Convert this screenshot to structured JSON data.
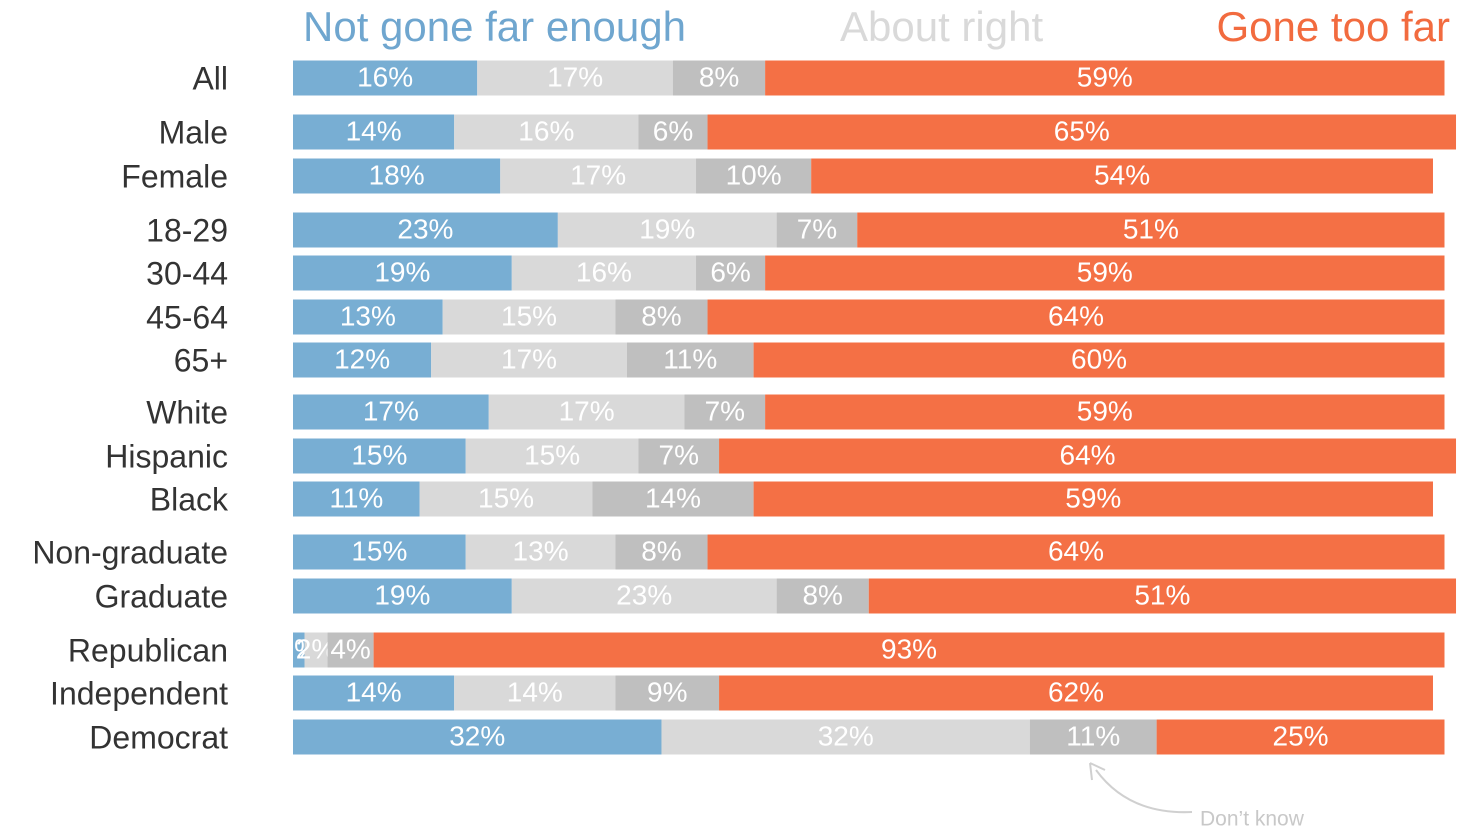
{
  "chart_data": {
    "type": "stacked_bar_horizontal",
    "categories": [
      "All",
      "Male",
      "Female",
      "18-29",
      "30-44",
      "45-64",
      "65+",
      "White",
      "Hispanic",
      "Black",
      "Non-graduate",
      "Graduate",
      "Republican",
      "Independent",
      "Democrat"
    ],
    "xlim": [
      0,
      100
    ],
    "series": [
      {
        "name": "Not gone far enough",
        "color": "#78aed3",
        "values": [
          16,
          14,
          18,
          23,
          19,
          13,
          12,
          17,
          15,
          11,
          15,
          19,
          1,
          14,
          32
        ],
        "value_labels": [
          "16%",
          "14%",
          "18%",
          "23%",
          "19%",
          "13%",
          "12%",
          "17%",
          "15%",
          "11%",
          "15%",
          "19%",
          "1%",
          "14%",
          "32%"
        ]
      },
      {
        "name": "About right",
        "color": "#d9d9d9",
        "values": [
          17,
          16,
          17,
          19,
          16,
          15,
          17,
          17,
          15,
          15,
          13,
          23,
          2,
          14,
          32
        ],
        "value_labels": [
          "17%",
          "16%",
          "17%",
          "19%",
          "16%",
          "15%",
          "17%",
          "17%",
          "15%",
          "15%",
          "13%",
          "23%",
          "2%",
          "14%",
          "32%"
        ]
      },
      {
        "name": "Don’t know",
        "color": "#bfbfbf",
        "values": [
          8,
          6,
          10,
          7,
          6,
          8,
          11,
          7,
          7,
          14,
          8,
          8,
          4,
          9,
          11
        ],
        "value_labels": [
          "8%",
          "6%",
          "10%",
          "7%",
          "6%",
          "8%",
          "11%",
          "7%",
          "7%",
          "14%",
          "8%",
          "8%",
          "4%",
          "9%",
          "11%"
        ]
      },
      {
        "name": "Gone too far",
        "color": "#f47045",
        "values": [
          59,
          65,
          54,
          51,
          59,
          64,
          60,
          59,
          64,
          59,
          64,
          51,
          93,
          62,
          25
        ],
        "value_labels": [
          "59%",
          "65%",
          "54%",
          "51%",
          "59%",
          "64%",
          "60%",
          "59%",
          "64%",
          "59%",
          "64%",
          "51%",
          "93%",
          "62%",
          "25%"
        ]
      }
    ]
  }
}
